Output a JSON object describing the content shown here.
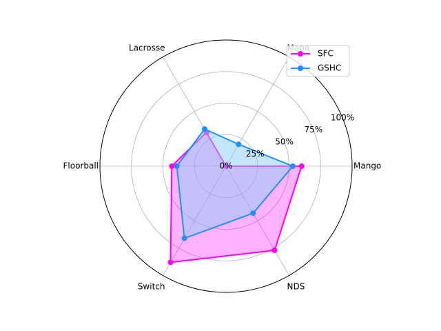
{
  "chart_data": {
    "type": "radar",
    "categories": [
      "Mango",
      "Mapo",
      "Lacrosse",
      "Floorball",
      "Switch",
      "NDS"
    ],
    "series": [
      {
        "name": "SFC",
        "values": [
          60,
          0,
          31,
          43,
          88,
          77
        ],
        "color": "#ff00ff",
        "fill": "#ff00ff",
        "fill_alpha": 0.3
      },
      {
        "name": "GSHC",
        "values": [
          53,
          20,
          34,
          39,
          66,
          43
        ],
        "color": "#1e90ff",
        "fill": "#87cefa",
        "fill_alpha": 0.5
      }
    ],
    "rlim": [
      0,
      100
    ],
    "rticks": [
      0,
      25,
      50,
      75,
      100
    ],
    "rtick_labels": [
      "0%",
      "25%",
      "50%",
      "75%",
      "100%"
    ],
    "grid": true,
    "legend": "top-right"
  }
}
